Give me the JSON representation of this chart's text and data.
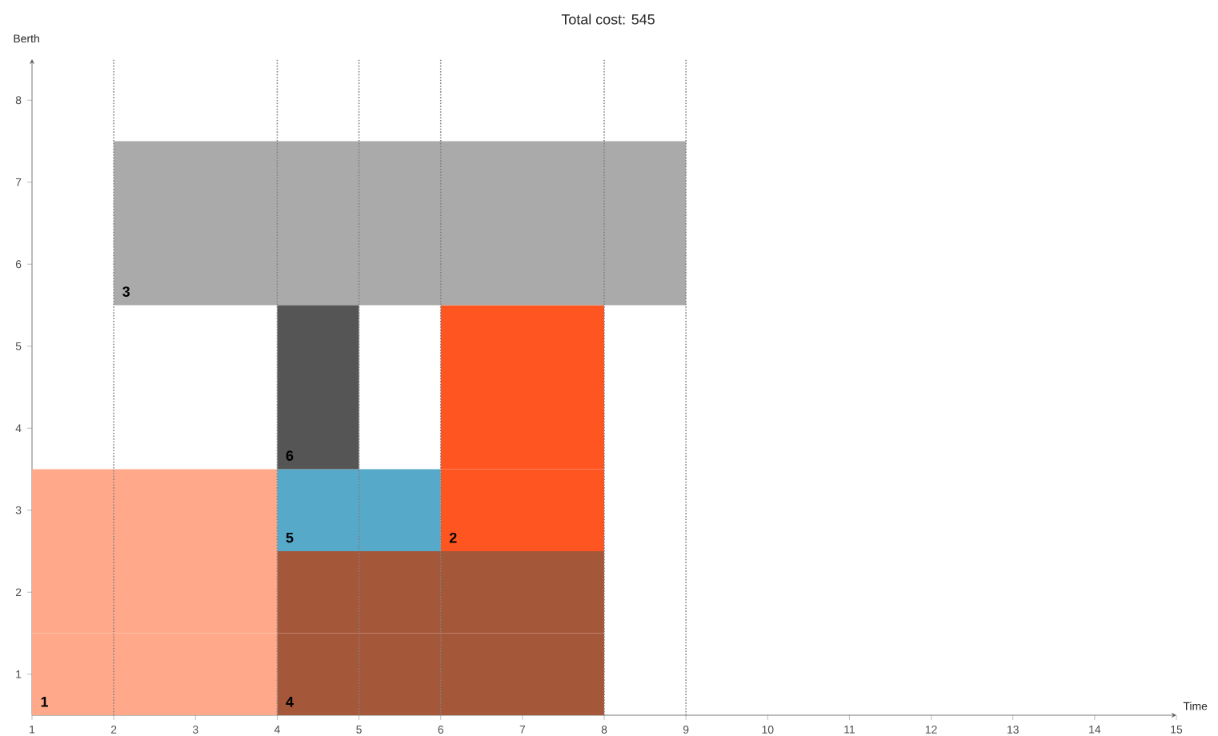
{
  "chart_data": {
    "type": "bar",
    "orientation": "horizontal",
    "title": "Total cost: 545",
    "xlabel": "Time",
    "ylabel": "Berth",
    "xlim": [
      1,
      15
    ],
    "xticks": [
      1,
      2,
      3,
      4,
      5,
      6,
      7,
      8,
      9,
      10,
      11,
      12,
      13,
      14,
      15
    ],
    "ylim": [
      0.5,
      8.5
    ],
    "yticks": [
      1,
      2,
      3,
      4,
      5,
      6,
      7,
      8
    ],
    "series": [
      {
        "name": "1",
        "color": "#ffa98a",
        "x": [
          1,
          2,
          3
        ],
        "base": [
          1,
          1,
          1
        ],
        "values": [
          3,
          3,
          3
        ]
      },
      {
        "name": "2",
        "color": "#ff5520",
        "x": [
          3,
          4,
          5
        ],
        "base": [
          6,
          6,
          6
        ],
        "values": [
          2,
          2,
          2
        ]
      },
      {
        "name": "3",
        "color": "#aaaaaa",
        "x": [
          6,
          7
        ],
        "base": [
          2,
          2
        ],
        "values": [
          7,
          7
        ]
      },
      {
        "name": "4",
        "color": "#a5573a",
        "x": [
          1,
          2
        ],
        "base": [
          4,
          4
        ],
        "values": [
          4,
          4
        ]
      },
      {
        "name": "5",
        "color": "#56a9c8",
        "x": [
          3
        ],
        "base": [
          4
        ],
        "values": [
          2
        ]
      },
      {
        "name": "6",
        "color": "#555555",
        "x": [
          4,
          5
        ],
        "base": [
          4,
          4
        ],
        "values": [
          1,
          1
        ]
      }
    ],
    "ref_lines": [
      {
        "axis": "x",
        "value": 2,
        "line_style": "dotted"
      },
      {
        "axis": "x",
        "value": 4,
        "line_style": "dotted"
      },
      {
        "axis": "x",
        "value": 5,
        "line_style": "dotted"
      },
      {
        "axis": "x",
        "value": 6,
        "line_style": "dotted"
      },
      {
        "axis": "x",
        "value": 8,
        "line_style": "dotted"
      },
      {
        "axis": "x",
        "value": 9,
        "line_style": "dotted"
      }
    ]
  }
}
